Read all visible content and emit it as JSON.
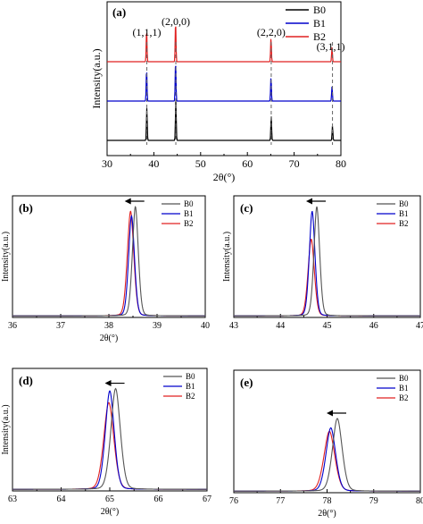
{
  "chart_data": [
    {
      "id": "a",
      "panel_label": "(a)",
      "type": "line",
      "xlabel": "2θ(°)",
      "ylabel": "Intensity(a.u.)",
      "xlim": [
        30,
        80
      ],
      "xticks": [
        30,
        40,
        50,
        60,
        70,
        80
      ],
      "stacked": true,
      "series_order": [
        "B0",
        "B1",
        "B2"
      ],
      "series": [
        {
          "name": "B0",
          "color": "#000000",
          "peaks": [
            {
              "x": 38.5,
              "h": 1.0
            },
            {
              "x": 44.7,
              "h": 1.25
            },
            {
              "x": 65.1,
              "h": 0.75
            },
            {
              "x": 78.2,
              "h": 0.45
            }
          ]
        },
        {
          "name": "B1",
          "color": "#0000cc",
          "peaks": [
            {
              "x": 38.45,
              "h": 1.0
            },
            {
              "x": 44.65,
              "h": 1.25
            },
            {
              "x": 65.05,
              "h": 0.75
            },
            {
              "x": 78.1,
              "h": 0.45
            }
          ]
        },
        {
          "name": "B2",
          "color": "#e02020",
          "peaks": [
            {
              "x": 38.45,
              "h": 1.0
            },
            {
              "x": 44.65,
              "h": 1.25
            },
            {
              "x": 65.05,
              "h": 0.75
            },
            {
              "x": 78.1,
              "h": 0.45
            }
          ]
        }
      ],
      "annotations": [
        {
          "text": "(1,1,1)",
          "x": 38.5
        },
        {
          "text": "(2,0,0)",
          "x": 44.7
        },
        {
          "text": "(2,2,0)",
          "x": 65.1
        },
        {
          "text": "(3,1,1)",
          "x": 78.2
        }
      ],
      "legend_position": "top-right"
    },
    {
      "id": "b",
      "panel_label": "(b)",
      "type": "line",
      "xlabel": "2θ(°)",
      "ylabel": "Intensity(a.u.)",
      "xlim": [
        36,
        40
      ],
      "xticks": [
        36,
        37,
        38,
        39,
        40
      ],
      "arrow": "left",
      "series": [
        {
          "name": "B0",
          "color": "#555555",
          "center": 38.55,
          "height": 0.94,
          "width": 0.1
        },
        {
          "name": "B1",
          "color": "#0000cc",
          "center": 38.47,
          "height": 0.86,
          "width": 0.1
        },
        {
          "name": "B2",
          "color": "#e02020",
          "center": 38.45,
          "height": 0.9,
          "width": 0.11
        }
      ],
      "legend_position": "top-right"
    },
    {
      "id": "c",
      "panel_label": "(c)",
      "type": "line",
      "xlabel": "",
      "ylabel": "Intensity(a.u.)",
      "xlim": [
        43,
        47
      ],
      "xticks": [
        43,
        44,
        45,
        46,
        47
      ],
      "arrow": "left",
      "series": [
        {
          "name": "B0",
          "color": "#555555",
          "center": 44.78,
          "height": 0.94,
          "width": 0.1
        },
        {
          "name": "B1",
          "color": "#0000cc",
          "center": 44.68,
          "height": 0.9,
          "width": 0.1
        },
        {
          "name": "B2",
          "color": "#e02020",
          "center": 44.66,
          "height": 0.66,
          "width": 0.11
        }
      ],
      "legend_position": "top-right"
    },
    {
      "id": "d",
      "panel_label": "(d)",
      "type": "line",
      "xlabel": "2θ(°)",
      "ylabel": "Intensity(a.u.)",
      "xlim": [
        63,
        67
      ],
      "xticks": [
        63,
        64,
        65,
        66,
        67
      ],
      "arrow": "left",
      "series": [
        {
          "name": "B0",
          "color": "#555555",
          "center": 65.12,
          "height": 0.86,
          "width": 0.16
        },
        {
          "name": "B1",
          "color": "#0000cc",
          "center": 65.0,
          "height": 0.84,
          "width": 0.15
        },
        {
          "name": "B2",
          "color": "#e02020",
          "center": 64.98,
          "height": 0.74,
          "width": 0.17
        }
      ],
      "legend_position": "top-right"
    },
    {
      "id": "e",
      "panel_label": "(e)",
      "type": "line",
      "xlabel": "2θ(°)",
      "ylabel": "",
      "xlim": [
        76,
        80
      ],
      "xticks": [
        76,
        77,
        78,
        79,
        80
      ],
      "arrow": "left",
      "series": [
        {
          "name": "B0",
          "color": "#555555",
          "center": 78.22,
          "height": 0.62,
          "width": 0.17
        },
        {
          "name": "B1",
          "color": "#0000cc",
          "center": 78.08,
          "height": 0.54,
          "width": 0.17
        },
        {
          "name": "B2",
          "color": "#e02020",
          "center": 78.05,
          "height": 0.51,
          "width": 0.19
        }
      ],
      "legend_position": "top-right"
    }
  ]
}
